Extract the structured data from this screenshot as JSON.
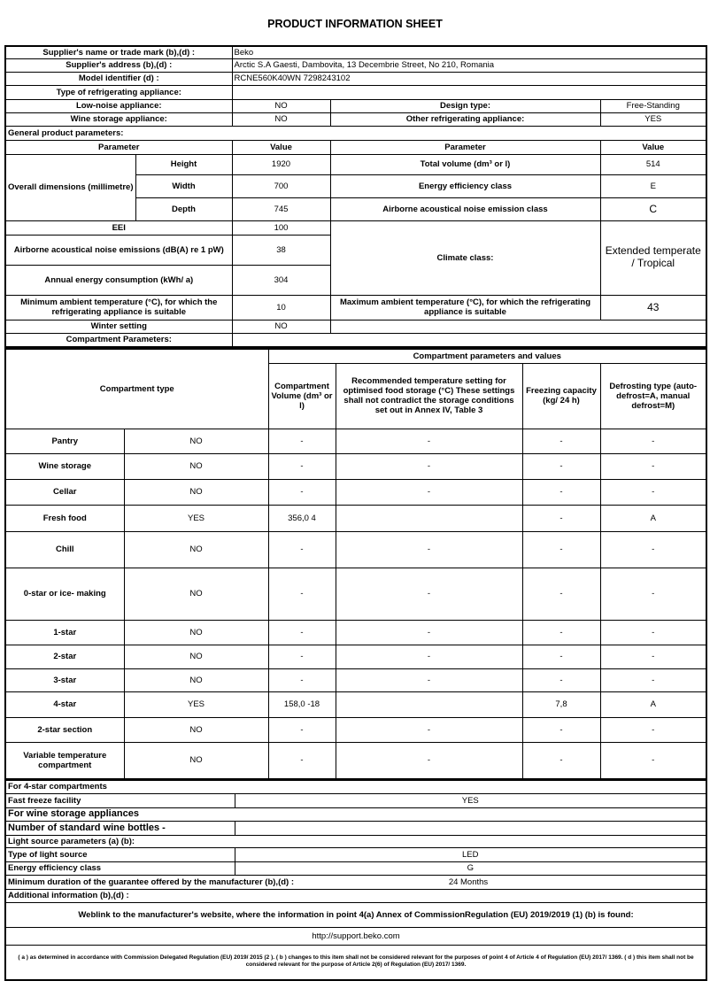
{
  "title": "PRODUCT INFORMATION SHEET",
  "supplier": {
    "name_label": "Supplier's name or trade mark (b),(d) :",
    "name_value": "Beko",
    "address_label": "Supplier's address (b),(d) :",
    "address_value": "Arctic S.A  Gaesti, Dambovita, 13 Decembrie Street, No 210, Romania",
    "model_label": "Model identifier (d) :",
    "model_value": "RCNE560K40WN 7298243102",
    "type_label": "Type of refrigerating appliance:",
    "low_noise_label": "Low-noise appliance:",
    "low_noise_value": "NO",
    "design_label": "Design type:",
    "design_value": "Free-Standing",
    "wine_label": "Wine storage appliance:",
    "wine_value": "NO",
    "other_label": "Other refrigerating appliance:",
    "other_value": "YES"
  },
  "general": {
    "heading": "General product parameters:",
    "param_header": "Parameter",
    "value_header": "Value",
    "dimensions_label": "Overall dimensions (millimetre)",
    "height_label": "Height",
    "height_value": "1920",
    "width_label": "Width",
    "width_value": "700",
    "depth_label": "Depth",
    "depth_value": "745",
    "total_volume_label": "Total volume (dm³ or l)",
    "total_volume_value": "514",
    "energy_class_label": "Energy efficiency class",
    "energy_class_value": "E",
    "noise_class_label": "Airborne acoustical noise emission class",
    "noise_class_value": "C",
    "eei_label": "EEI",
    "eei_value": "100",
    "noise_label": "Airborne acoustical noise emissions (dB(A) re 1 pW)",
    "noise_value": "38",
    "climate_label": "Climate class:",
    "climate_value": "Extended temperate / Tropical",
    "annual_label": "Annual energy consumption (kWh/ a)",
    "annual_value": "304",
    "min_ambient_label": "Minimum ambient temperature (°C), for which the refrigerating appliance is suitable",
    "min_ambient_value": "10",
    "max_ambient_label": "Maximum ambient temperature (°C), for which the refrigerating appliance is suitable",
    "max_ambient_value": "43",
    "winter_label": "Winter setting",
    "winter_value": "NO"
  },
  "compartments": {
    "heading": "Compartment Parameters:",
    "type_header": "Compartment type",
    "values_header": "Compartment parameters and values",
    "volume_header": "Compartment Volume (dm³ or l)",
    "temp_header": "Recommended temperature setting for optimised food storage (°C) These settings shall not contradict the storage conditions set out in Annex IV, Table 3",
    "freezing_header": "Freezing capacity (kg/ 24 h)",
    "defrost_header": "Defrosting type (auto-defrost=A, manual defrost=M)",
    "rows": [
      {
        "name": "Pantry",
        "present": "NO",
        "volume": "-",
        "temp": "-",
        "freezing": "-",
        "defrost": "-"
      },
      {
        "name": "Wine storage",
        "present": "NO",
        "volume": "-",
        "temp": "-",
        "freezing": "-",
        "defrost": "-"
      },
      {
        "name": "Cellar",
        "present": "NO",
        "volume": "-",
        "temp": "-",
        "freezing": "-",
        "defrost": "-"
      },
      {
        "name": "Fresh food",
        "present": "YES",
        "volume": "356,0 4",
        "temp": "",
        "freezing": "-",
        "defrost": "A"
      },
      {
        "name": "Chill",
        "present": "NO",
        "volume": "-",
        "temp": "-",
        "freezing": "-",
        "defrost": "-"
      },
      {
        "name": "0-star or ice- making",
        "present": "NO",
        "volume": "-",
        "temp": "-",
        "freezing": "-",
        "defrost": "-"
      },
      {
        "name": "1-star",
        "present": "NO",
        "volume": "-",
        "temp": "-",
        "freezing": "-",
        "defrost": "-"
      },
      {
        "name": "2-star",
        "present": "NO",
        "volume": "-",
        "temp": "-",
        "freezing": "-",
        "defrost": "-"
      },
      {
        "name": "3-star",
        "present": "NO",
        "volume": "-",
        "temp": "-",
        "freezing": "-",
        "defrost": "-"
      },
      {
        "name": "4-star",
        "present": "YES",
        "volume": "158,0 -18",
        "temp": "",
        "freezing": "7,8",
        "defrost": "A"
      },
      {
        "name": "2-star section",
        "present": "NO",
        "volume": "-",
        "temp": "-",
        "freezing": "-",
        "defrost": "-"
      },
      {
        "name": "Variable temperature compartment",
        "present": "NO",
        "volume": "-",
        "temp": "-",
        "freezing": "-",
        "defrost": "-"
      }
    ]
  },
  "extra": {
    "four_star_heading": "For 4-star compartments",
    "fast_freeze_label": "Fast freeze facility",
    "fast_freeze_value": "YES",
    "wine_heading": "For wine storage appliances",
    "bottles_label": "Number of standard wine bottles -",
    "bottles_value": "",
    "light_heading": "Light source parameters (a) (b):",
    "light_type_label": "Type of light source",
    "light_type_value": "LED",
    "light_class_label": "Energy efficiency class",
    "light_class_value": "G",
    "guarantee_label": "Minimum duration of the guarantee offered by the manufacturer (b),(d) :",
    "guarantee_value": "24 Months",
    "additional_label": "Additional information (b),(d) :",
    "weblink_label": "Weblink to the manufacturer's website, where the information in point 4(a) Annex of CommissionRegulation (EU) 2019/2019 (1) (b) is found:",
    "weblink_value": "http://support.beko.com",
    "footnote": "( a ) as determined in accordance with Commission Delegated Regulation (EU) 2019/ 2015 (2 ). ( b ) changes to this item shall not be considered relevant for the purposes of point 4 of Article 4 of Regulation (EU) 2017/ 1369. ( d ) this item shall not be considered relevant for the purpose of Article 2(6) of Regulation (EU) 2017/ 1369."
  }
}
